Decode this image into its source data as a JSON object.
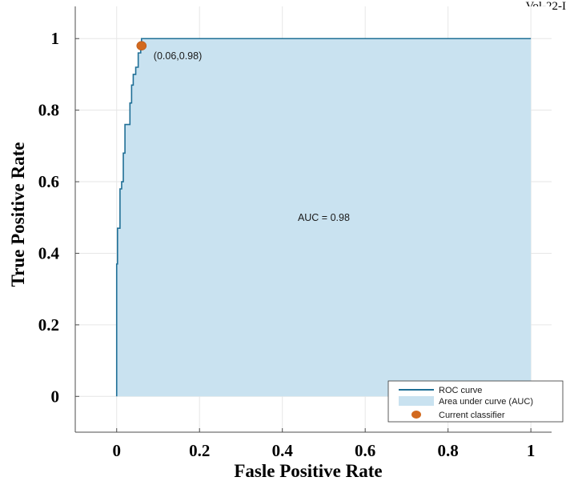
{
  "corner_fragment": "Vol-22-I",
  "chart_data": {
    "type": "line",
    "xlabel": "Fasle Positive Rate",
    "ylabel": "True Positive Rate",
    "xlim": [
      -0.1,
      1.05
    ],
    "ylim": [
      -0.1,
      1.09
    ],
    "xticks": [
      0,
      0.2,
      0.4,
      0.6,
      0.8,
      1
    ],
    "xtick_labels": [
      "0",
      "0.2",
      "0.4",
      "0.6",
      "0.8",
      "1"
    ],
    "yticks": [
      0,
      0.2,
      0.4,
      0.6,
      0.8,
      1
    ],
    "ytick_labels": [
      "0",
      "0.2",
      "0.4",
      "0.6",
      "0.8",
      "1"
    ],
    "grid": true,
    "legend_position": "bottom-right",
    "series": [
      {
        "name": "ROC curve",
        "color": "#1f6f96",
        "x": [
          0,
          0,
          0.002,
          0.002,
          0.008,
          0.008,
          0.012,
          0.012,
          0.016,
          0.016,
          0.02,
          0.02,
          0.024,
          0.024,
          0.032,
          0.032,
          0.036,
          0.036,
          0.04,
          0.04,
          0.046,
          0.046,
          0.052,
          0.052,
          0.058,
          0.058,
          0.06,
          0.06,
          0.07,
          0.07,
          1
        ],
        "y": [
          0,
          0.37,
          0.37,
          0.47,
          0.47,
          0.58,
          0.58,
          0.6,
          0.6,
          0.68,
          0.68,
          0.76,
          0.76,
          0.76,
          0.76,
          0.82,
          0.82,
          0.87,
          0.87,
          0.9,
          0.9,
          0.92,
          0.92,
          0.96,
          0.96,
          0.98,
          0.98,
          1.0,
          1.0,
          1.0,
          1.0
        ]
      }
    ],
    "area": {
      "name": "Area under curve (AUC)",
      "color": "#c9e2f0"
    },
    "points": [
      {
        "name": "Current classifier",
        "x": 0.06,
        "y": 0.98,
        "color": "#d2691e",
        "label": "(0.06,0.98)"
      }
    ],
    "annotations": [
      {
        "text": "AUC = 0.98",
        "x": 0.5,
        "y": 0.5
      }
    ],
    "legend": [
      "ROC curve",
      "Area under curve (AUC)",
      "Current classifier"
    ]
  }
}
